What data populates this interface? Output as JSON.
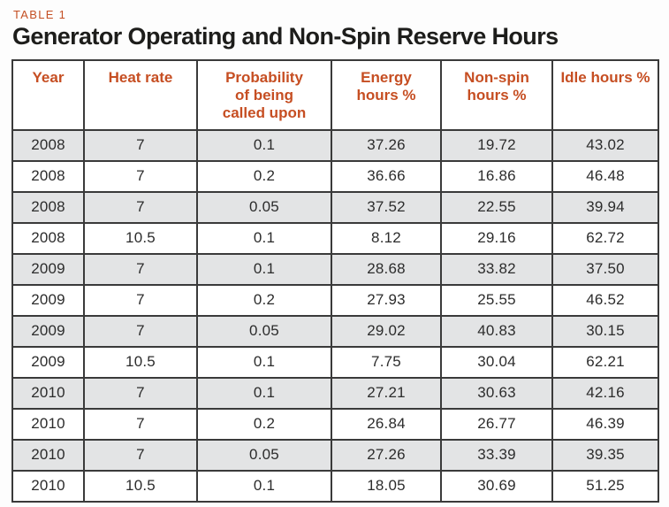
{
  "label": "TABLE 1",
  "title": "Generator Operating and Non-Spin Reserve Hours",
  "colors": {
    "accent_orange": "#c64e22",
    "title_text": "#1d1d1b",
    "cell_text": "#2c2c2c",
    "alt_row_bg": "#e3e4e5",
    "grid_border": "#3a3a3a",
    "page_bg": "#fdfdfd"
  },
  "table": {
    "columns": [
      "Year",
      "Heat rate",
      "Probability\nof being\ncalled upon",
      "Energy\nhours %",
      "Non-spin\nhours %",
      "Idle hours %"
    ],
    "rows": [
      [
        "2008",
        "7",
        "0.1",
        "37.26",
        "19.72",
        "43.02"
      ],
      [
        "2008",
        "7",
        "0.2",
        "36.66",
        "16.86",
        "46.48"
      ],
      [
        "2008",
        "7",
        "0.05",
        "37.52",
        "22.55",
        "39.94"
      ],
      [
        "2008",
        "10.5",
        "0.1",
        "8.12",
        "29.16",
        "62.72"
      ],
      [
        "2009",
        "7",
        "0.1",
        "28.68",
        "33.82",
        "37.50"
      ],
      [
        "2009",
        "7",
        "0.2",
        "27.93",
        "25.55",
        "46.52"
      ],
      [
        "2009",
        "7",
        "0.05",
        "29.02",
        "40.83",
        "30.15"
      ],
      [
        "2009",
        "10.5",
        "0.1",
        "7.75",
        "30.04",
        "62.21"
      ],
      [
        "2010",
        "7",
        "0.1",
        "27.21",
        "30.63",
        "42.16"
      ],
      [
        "2010",
        "7",
        "0.2",
        "26.84",
        "26.77",
        "46.39"
      ],
      [
        "2010",
        "7",
        "0.05",
        "27.26",
        "33.39",
        "39.35"
      ],
      [
        "2010",
        "10.5",
        "0.1",
        "18.05",
        "30.69",
        "51.25"
      ]
    ]
  }
}
